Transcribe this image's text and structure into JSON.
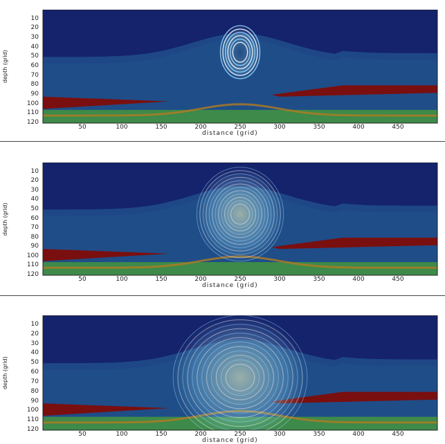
{
  "chart_data": [
    {
      "type": "heatmap",
      "title": "",
      "xlabel": "distance (grid)",
      "ylabel": "depth (grid)",
      "x_ticks": [
        50,
        100,
        150,
        200,
        250,
        300,
        350,
        400,
        450
      ],
      "y_ticks": [
        10,
        20,
        30,
        40,
        50,
        60,
        70,
        80,
        90,
        100,
        110,
        120
      ],
      "xlim": [
        0,
        500
      ],
      "ylim": [
        120,
        0
      ],
      "wavefront": {
        "center_x": 250,
        "center_y": 45,
        "radius_x": 25,
        "radius_y": 28
      }
    },
    {
      "type": "heatmap",
      "title": "",
      "xlabel": "distance (grid)",
      "ylabel": "depth (grid)",
      "x_ticks": [
        50,
        100,
        150,
        200,
        250,
        300,
        350,
        400,
        450
      ],
      "y_ticks": [
        10,
        20,
        30,
        40,
        50,
        60,
        70,
        80,
        90,
        100,
        110,
        120
      ],
      "xlim": [
        0,
        500
      ],
      "ylim": [
        120,
        0
      ],
      "wavefront": {
        "center_x": 250,
        "center_y": 55,
        "radius_x": 55,
        "radius_y": 50
      }
    },
    {
      "type": "heatmap",
      "title": "",
      "xlabel": "distance (grid)",
      "ylabel": "depth (grid)",
      "x_ticks": [
        50,
        100,
        150,
        200,
        250,
        300,
        350,
        400,
        450
      ],
      "y_ticks": [
        10,
        20,
        30,
        40,
        50,
        60,
        70,
        80,
        90,
        100,
        110,
        120
      ],
      "xlim": [
        0,
        500
      ],
      "ylim": [
        120,
        0
      ],
      "wavefront": {
        "center_x": 250,
        "center_y": 65,
        "radius_x": 85,
        "radius_y": 65
      }
    }
  ]
}
